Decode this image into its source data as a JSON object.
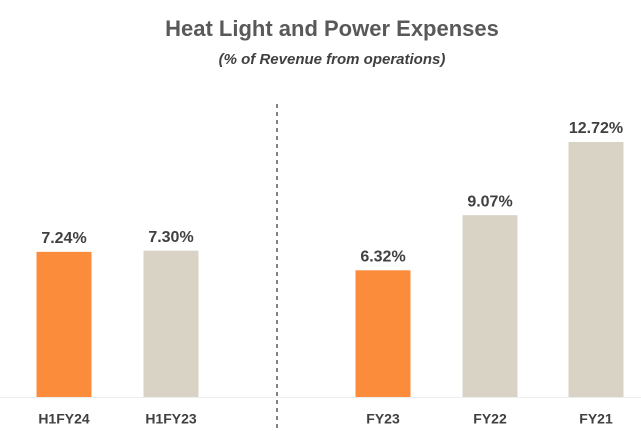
{
  "chart_data": {
    "type": "bar",
    "title": "Heat Light and Power Expenses",
    "subtitle": "(% of Revenue from operations)",
    "categories": [
      "H1FY24",
      "H1FY23",
      "FY23",
      "FY22",
      "FY21"
    ],
    "values": [
      7.24,
      7.3,
      6.32,
      9.07,
      12.72
    ],
    "value_labels": [
      "7.24%",
      "7.30%",
      "6.32%",
      "9.07%",
      "12.72%"
    ],
    "colors": [
      "#fa8c3c",
      "#d9d3c6",
      "#fa8c3c",
      "#d9d3c6",
      "#d9d3c6"
    ]
  }
}
